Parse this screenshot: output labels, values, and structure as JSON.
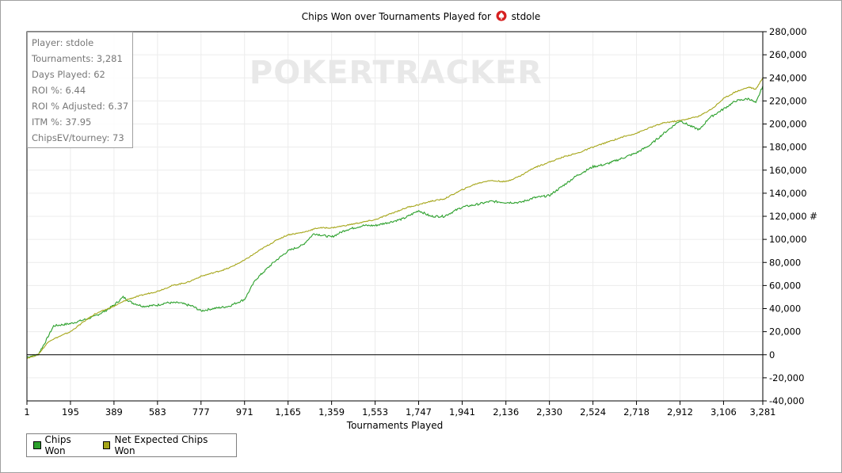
{
  "chart_data": {
    "type": "line",
    "title_prefix": "Chips Won over Tournaments Played for",
    "title_player": "stdole",
    "xlabel": "Tournaments Played",
    "ylabel": "#",
    "xlim": [
      1,
      3281
    ],
    "ylim": [
      -40000,
      280000
    ],
    "x_ticks": [
      1,
      195,
      389,
      583,
      777,
      971,
      1165,
      1359,
      1553,
      1747,
      1941,
      2136,
      2330,
      2524,
      2718,
      2912,
      3106,
      3281
    ],
    "x_tick_labels": [
      "1",
      "195",
      "389",
      "583",
      "777",
      "971",
      "1,165",
      "1,359",
      "1,553",
      "1,747",
      "1,941",
      "2,136",
      "2,330",
      "2,524",
      "2,718",
      "2,912",
      "3,106",
      "3,281"
    ],
    "y_ticks": [
      -40000,
      -20000,
      0,
      20000,
      40000,
      60000,
      80000,
      100000,
      120000,
      140000,
      160000,
      180000,
      200000,
      220000,
      240000,
      260000,
      280000
    ],
    "y_tick_labels": [
      "-40,000",
      "-20,000",
      "0",
      "20,000",
      "40,000",
      "60,000",
      "80,000",
      "100,000",
      "120,000",
      "140,000",
      "160,000",
      "180,000",
      "200,000",
      "220,000",
      "240,000",
      "260,000",
      "280,000"
    ],
    "grid": true,
    "legend_position": "bottom-left",
    "series": [
      {
        "name": "Chips Won",
        "color": "#2ca02c",
        "x": [
          1,
          50,
          80,
          120,
          195,
          250,
          300,
          350,
          389,
          430,
          470,
          520,
          583,
          620,
          680,
          740,
          777,
          830,
          900,
          971,
          1020,
          1100,
          1165,
          1230,
          1280,
          1359,
          1420,
          1500,
          1553,
          1620,
          1680,
          1747,
          1800,
          1860,
          1941,
          2000,
          2070,
          2136,
          2200,
          2260,
          2330,
          2380,
          2450,
          2524,
          2580,
          2650,
          2718,
          2780,
          2840,
          2912,
          2960,
          3000,
          3040,
          3106,
          3160,
          3220,
          3250,
          3281
        ],
        "y": [
          -2000,
          0,
          10000,
          25000,
          27000,
          30000,
          33000,
          38000,
          43000,
          50000,
          45000,
          42000,
          43000,
          45000,
          45000,
          42000,
          38000,
          40000,
          42000,
          48000,
          65000,
          80000,
          90000,
          95000,
          105000,
          102000,
          108000,
          112000,
          112000,
          115000,
          118000,
          125000,
          120000,
          120000,
          128000,
          130000,
          133000,
          132000,
          132000,
          136000,
          138000,
          145000,
          155000,
          163000,
          165000,
          170000,
          175000,
          182000,
          192000,
          203000,
          198000,
          195000,
          205000,
          213000,
          220000,
          222000,
          218000,
          233000
        ]
      },
      {
        "name": "Net Expected Chips Won",
        "color": "#a6a61a",
        "x": [
          1,
          50,
          100,
          195,
          250,
          300,
          389,
          450,
          520,
          583,
          650,
          720,
          777,
          850,
          900,
          971,
          1050,
          1120,
          1165,
          1230,
          1300,
          1359,
          1420,
          1500,
          1553,
          1620,
          1700,
          1747,
          1800,
          1860,
          1941,
          2000,
          2060,
          2136,
          2200,
          2260,
          2330,
          2400,
          2460,
          2524,
          2600,
          2660,
          2718,
          2780,
          2840,
          2912,
          2960,
          3000,
          3060,
          3106,
          3160,
          3220,
          3250,
          3281
        ],
        "y": [
          -3000,
          0,
          12000,
          20000,
          28000,
          35000,
          42000,
          48000,
          52000,
          55000,
          60000,
          63000,
          68000,
          72000,
          75000,
          82000,
          92000,
          100000,
          104000,
          106000,
          110000,
          110000,
          112000,
          115000,
          117000,
          122000,
          128000,
          130000,
          133000,
          135000,
          143000,
          148000,
          151000,
          150000,
          155000,
          162000,
          167000,
          172000,
          175000,
          180000,
          185000,
          189000,
          192000,
          197000,
          201000,
          203000,
          205000,
          207000,
          214000,
          222000,
          228000,
          232000,
          230000,
          240000
        ]
      }
    ]
  },
  "stats": {
    "player": "Player: stdole",
    "tournaments": "Tournaments: 3,281",
    "days_played": "Days Played: 62",
    "roi": "ROI %: 6.44",
    "roi_adjusted": "ROI % Adjusted: 6.37",
    "itm": "ITM %: 37.95",
    "chipsev": "ChipsEV/tourney: 73"
  },
  "watermark": "POKERTRACKER",
  "title_icon": "pokertracker-spade-icon",
  "title_icon_color": "#d62020",
  "zero_line_color": "#000000",
  "grid_color": "#ececec"
}
